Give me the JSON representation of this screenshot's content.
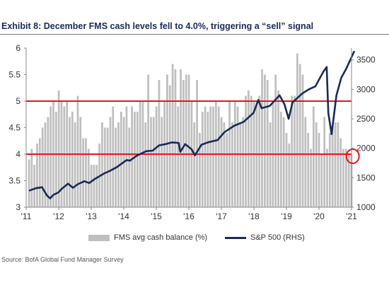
{
  "title": "Exhibit 8: December FMS cash levels fell to 4.0%, triggering a “sell” signal",
  "source": "Source: BofA Global Fund Manager Survey",
  "colors": {
    "bars": "#bfbfbf",
    "line": "#1a2a55",
    "threshold": "#e8141c",
    "title": "#1a2a55"
  },
  "chart_data": {
    "type": "bar",
    "x_tick_labels": [
      "'11",
      "'12",
      "'13",
      "'14",
      "'15",
      "'16",
      "'17",
      "'18",
      "'19",
      "'20",
      "'21"
    ],
    "x_range": [
      2011.0,
      2021.0
    ],
    "y_left": {
      "ticks": [
        "3",
        "3.5",
        "4",
        "4.5",
        "5",
        "5.5",
        "6"
      ],
      "range": [
        3,
        6
      ]
    },
    "y_right": {
      "ticks": [
        "1000",
        "1500",
        "2000",
        "2500",
        "3000",
        "3500"
      ],
      "range": [
        1000,
        3700
      ]
    },
    "threshold_lines": [
      5.0,
      4.0
    ],
    "highlight": {
      "x": 2020.95,
      "y": 4.0
    },
    "legend_position": "bottom",
    "series": [
      {
        "name": "FMS avg cash balance (%)",
        "type": "bar",
        "axis": "left",
        "start": 2011.0,
        "step": 0.0833,
        "values": [
          3.9,
          4.1,
          3.8,
          4.2,
          4.3,
          4.5,
          4.6,
          4.7,
          4.9,
          5.0,
          4.8,
          5.2,
          5.0,
          4.9,
          5.0,
          4.7,
          4.8,
          4.6,
          5.1,
          4.7,
          4.3,
          4.3,
          4.1,
          3.8,
          3.8,
          3.8,
          4.2,
          4.6,
          4.5,
          4.5,
          4.7,
          4.9,
          4.5,
          4.6,
          4.8,
          4.7,
          4.9,
          4.5,
          4.9,
          4.8,
          4.8,
          5.0,
          5.0,
          4.6,
          5.5,
          4.7,
          4.7,
          4.9,
          5.4,
          4.7,
          5.0,
          5.5,
          5.3,
          5.7,
          5.6,
          4.9,
          5.6,
          5.4,
          5.5,
          5.5,
          5.0,
          4.6,
          5.4,
          4.4,
          4.8,
          4.9,
          4.8,
          4.9,
          4.9,
          5.0,
          4.9,
          4.7,
          4.6,
          4.4,
          5.0,
          4.6,
          5.0,
          4.9,
          4.6,
          4.7,
          5.1,
          5.2,
          5.1,
          5.0,
          5.0,
          5.1,
          5.6,
          5.5,
          5.4,
          4.6,
          5.0,
          5.5,
          5.2,
          4.8,
          4.7,
          4.4,
          4.2,
          5.1,
          5.1,
          5.9,
          5.7,
          5.5,
          4.7,
          4.4,
          4.1,
          4.9,
          4.6,
          4.4,
          4.0,
          4.7,
          4.1,
          4.4,
          4.5,
          4.6,
          4.6,
          4.3,
          4.1,
          4.1,
          4.0,
          4.0
        ]
      },
      {
        "name": "S&P 500 (RHS)",
        "type": "line",
        "axis": "right",
        "x": [
          2011.0,
          2011.2,
          2011.4,
          2011.55,
          2011.65,
          2011.75,
          2011.9,
          2012.0,
          2012.2,
          2012.35,
          2012.5,
          2012.7,
          2012.85,
          2013.0,
          2013.3,
          2013.5,
          2013.7,
          2014.0,
          2014.1,
          2014.3,
          2014.6,
          2014.8,
          2015.0,
          2015.2,
          2015.4,
          2015.6,
          2015.65,
          2015.8,
          2016.0,
          2016.1,
          2016.3,
          2016.5,
          2016.8,
          2017.0,
          2017.3,
          2017.6,
          2017.9,
          2018.05,
          2018.15,
          2018.4,
          2018.7,
          2018.85,
          2018.98,
          2019.1,
          2019.4,
          2019.6,
          2019.8,
          2020.05,
          2020.15,
          2020.2,
          2020.3,
          2020.45,
          2020.6,
          2020.75,
          2020.9,
          2021.0
        ],
        "values": [
          1280,
          1320,
          1340,
          1200,
          1150,
          1210,
          1250,
          1310,
          1400,
          1330,
          1390,
          1440,
          1410,
          1470,
          1570,
          1620,
          1680,
          1800,
          1790,
          1870,
          1950,
          1960,
          2050,
          2070,
          2100,
          2090,
          1940,
          2070,
          1980,
          1880,
          2060,
          2100,
          2140,
          2270,
          2380,
          2450,
          2600,
          2820,
          2680,
          2720,
          2900,
          2750,
          2500,
          2780,
          2930,
          3000,
          3050,
          3300,
          3380,
          2600,
          2240,
          2900,
          3200,
          3350,
          3530,
          3650
        ]
      }
    ]
  }
}
